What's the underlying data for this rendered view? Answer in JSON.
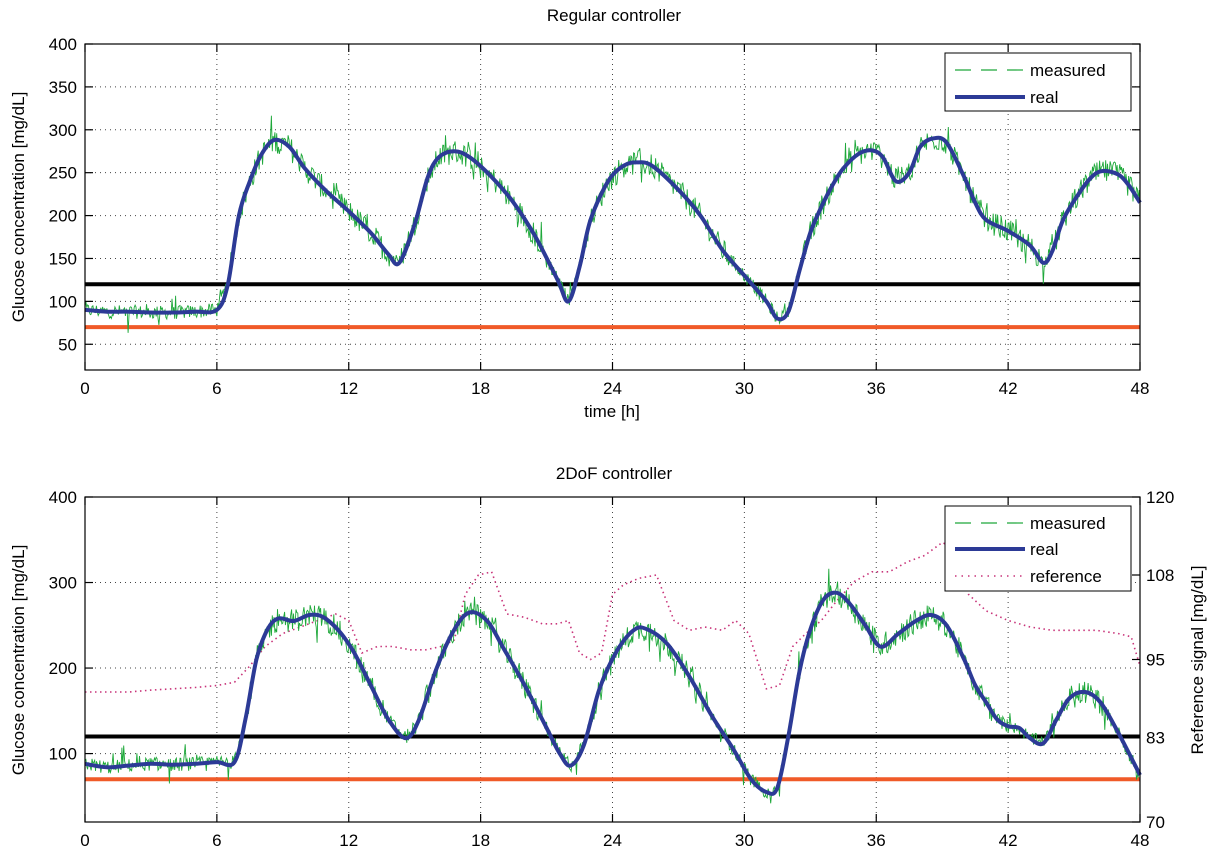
{
  "colors": {
    "measured": "#1ea83a",
    "real": "#2c3a96",
    "reference": "#c8347a",
    "upper_limit": "#000000",
    "lower_limit": "#f05a28"
  },
  "chart_data": [
    {
      "type": "line",
      "title": "Regular controller",
      "xlabel": "time [h]",
      "ylabel": "Glucose concentration [mg/dL]",
      "xlim": [
        0,
        48
      ],
      "ylim": [
        20,
        400
      ],
      "xticks": [
        0,
        6,
        12,
        18,
        24,
        30,
        36,
        42,
        48
      ],
      "yticks": [
        50,
        100,
        150,
        200,
        250,
        300,
        350,
        400
      ],
      "grid": true,
      "legend": {
        "position": "top-right",
        "entries": [
          "measured",
          "real"
        ]
      },
      "hlines": [
        {
          "name": "upper-limit",
          "y": 120
        },
        {
          "name": "lower-limit",
          "y": 70
        }
      ],
      "series": [
        {
          "name": "real",
          "style": "solid",
          "x": [
            0,
            1,
            2,
            3,
            4,
            5,
            6,
            6.5,
            7,
            7.5,
            8,
            8.6,
            9.3,
            10,
            11,
            12,
            13,
            13.8,
            14.3,
            15,
            15.6,
            16.1,
            16.8,
            17.5,
            18.5,
            19.5,
            20.5,
            21.5,
            22,
            22.5,
            23,
            23.8,
            24.5,
            25.1,
            25.8,
            27,
            28,
            29,
            30,
            31,
            31.5,
            32,
            32.5,
            33,
            33.5,
            34,
            34.5,
            35.2,
            35.8,
            36.3,
            36.9,
            37.5,
            38,
            38.6,
            39.2,
            40,
            40.5,
            41,
            42,
            43,
            43.6,
            44,
            44.5,
            45.2,
            45.8,
            46.3,
            47,
            47.5,
            48
          ],
          "values": [
            90,
            88,
            88,
            87,
            87,
            88,
            90,
            120,
            200,
            240,
            270,
            288,
            280,
            255,
            228,
            205,
            180,
            155,
            145,
            190,
            245,
            268,
            275,
            268,
            245,
            215,
            175,
            125,
            100,
            140,
            195,
            240,
            258,
            262,
            258,
            230,
            200,
            160,
            130,
            100,
            80,
            88,
            135,
            180,
            210,
            235,
            255,
            272,
            276,
            268,
            240,
            250,
            280,
            290,
            285,
            245,
            215,
            195,
            182,
            165,
            145,
            158,
            195,
            225,
            245,
            252,
            248,
            235,
            215
          ]
        }
      ]
    },
    {
      "type": "line",
      "title": "2DoF  controller",
      "ylabel": "Glucose concentration [mg/dL]",
      "y2label": "Reference signal [mg/dL]",
      "xlim": [
        0,
        48
      ],
      "ylim": [
        20,
        400
      ],
      "y2lim": [
        70,
        120
      ],
      "xticks": [
        0,
        6,
        12,
        18,
        24,
        30,
        36,
        42,
        48
      ],
      "yticks": [
        100,
        200,
        300,
        400
      ],
      "y2ticks": [
        70,
        83,
        95,
        108,
        120
      ],
      "grid": true,
      "legend": {
        "position": "top-right",
        "entries": [
          "measured",
          "real",
          "reference"
        ]
      },
      "hlines": [
        {
          "name": "upper-limit",
          "y": 120
        },
        {
          "name": "lower-limit",
          "y": 70
        }
      ],
      "series": [
        {
          "name": "real",
          "style": "solid",
          "x": [
            0,
            1,
            2,
            3,
            4,
            5,
            6,
            6.8,
            7.3,
            7.8,
            8.3,
            8.8,
            9.5,
            10.2,
            10.8,
            11.5,
            12.2,
            13,
            13.8,
            14.6,
            15.2,
            16,
            16.8,
            17.5,
            18.3,
            19,
            20,
            21,
            21.6,
            22.1,
            22.7,
            23.4,
            24.2,
            25,
            25.6,
            26.5,
            27.5,
            28.5,
            29.5,
            30.3,
            31,
            31.5,
            32,
            32.5,
            33,
            33.6,
            34.2,
            34.8,
            35.5,
            36.2,
            37,
            37.8,
            38.5,
            39.2,
            40,
            40.5,
            41,
            41.5,
            42,
            42.5,
            43,
            43.6,
            44.2,
            44.8,
            45.5,
            46.2,
            47,
            48
          ],
          "values": [
            88,
            84,
            86,
            88,
            87,
            88,
            90,
            90,
            140,
            210,
            245,
            258,
            255,
            262,
            260,
            245,
            220,
            180,
            140,
            118,
            140,
            200,
            245,
            265,
            255,
            225,
            180,
            130,
            100,
            86,
            110,
            175,
            220,
            245,
            245,
            228,
            190,
            145,
            105,
            70,
            55,
            60,
            120,
            195,
            245,
            280,
            288,
            275,
            250,
            225,
            240,
            255,
            262,
            250,
            210,
            180,
            160,
            140,
            132,
            130,
            118,
            112,
            140,
            165,
            172,
            160,
            125,
            75
          ]
        },
        {
          "name": "reference",
          "style": "dotted",
          "axis": "right",
          "x": [
            0,
            1,
            2,
            3,
            4,
            5,
            6,
            6.8,
            7.5,
            8.2,
            9,
            9.8,
            10.6,
            11.4,
            12,
            12.6,
            13.3,
            14,
            14.8,
            15.5,
            16.2,
            16.8,
            17.3,
            17.9,
            18.5,
            19.2,
            20,
            20.8,
            21.5,
            22,
            22.5,
            23,
            23.5,
            24,
            24.5,
            25.2,
            26,
            26.8,
            27.5,
            28.2,
            29,
            29.6,
            30.2,
            31,
            31.6,
            32.2,
            32.8,
            33.5,
            34.2,
            35,
            35.8,
            36.6,
            37.4,
            38.2,
            39,
            39.6,
            40.2,
            41,
            42,
            43,
            44,
            45,
            46,
            47,
            47.6,
            48
          ],
          "values": [
            90,
            90,
            90,
            90.3,
            90.5,
            90.7,
            91,
            91.5,
            94,
            97,
            99,
            100,
            101,
            102,
            101,
            96,
            97,
            97,
            96.5,
            96.5,
            97,
            98,
            105,
            108,
            108.5,
            102,
            101.5,
            100.5,
            100.5,
            101,
            96,
            95,
            96,
            105,
            106.5,
            107.5,
            108,
            101,
            99.5,
            100,
            99.5,
            101,
            99,
            90.5,
            91,
            97,
            99,
            101,
            104,
            107,
            108.5,
            108.5,
            110,
            111,
            113,
            112,
            105,
            102.5,
            101,
            100,
            99.5,
            99.5,
            99.5,
            99,
            98.5,
            94
          ]
        }
      ],
      "measured_series": {
        "name": "measured",
        "style": "dashed",
        "source": "real + measurement noise"
      }
    }
  ]
}
